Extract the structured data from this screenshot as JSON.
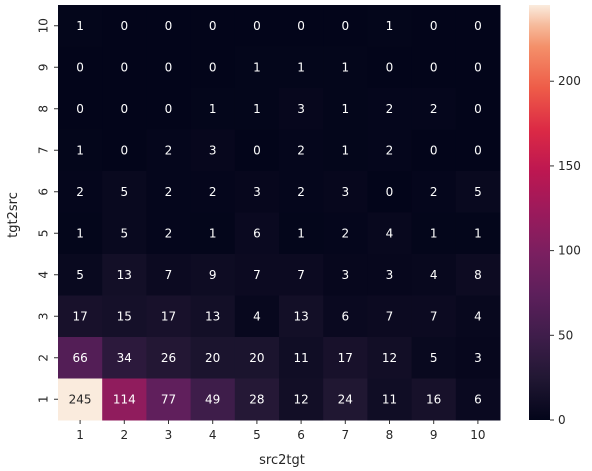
{
  "chart_data": {
    "type": "heatmap",
    "title": "",
    "xlabel": "src2tgt",
    "ylabel": "tgt2src",
    "x_categories": [
      "1",
      "2",
      "3",
      "4",
      "5",
      "6",
      "7",
      "8",
      "9",
      "10"
    ],
    "y_categories_top_to_bottom": [
      "10",
      "9",
      "8",
      "7",
      "6",
      "5",
      "4",
      "3",
      "2",
      "1"
    ],
    "values_top_to_bottom": [
      [
        1,
        0,
        0,
        0,
        0,
        0,
        0,
        1,
        0,
        0
      ],
      [
        0,
        0,
        0,
        0,
        1,
        1,
        1,
        0,
        0,
        0
      ],
      [
        0,
        0,
        0,
        1,
        1,
        3,
        1,
        2,
        2,
        0
      ],
      [
        1,
        0,
        2,
        3,
        0,
        2,
        1,
        2,
        0,
        0
      ],
      [
        2,
        5,
        2,
        2,
        3,
        2,
        3,
        0,
        2,
        5
      ],
      [
        1,
        5,
        2,
        1,
        6,
        1,
        2,
        4,
        1,
        1
      ],
      [
        5,
        13,
        7,
        9,
        7,
        7,
        3,
        3,
        4,
        8
      ],
      [
        17,
        15,
        17,
        13,
        4,
        13,
        6,
        7,
        7,
        4
      ],
      [
        66,
        34,
        26,
        20,
        20,
        11,
        17,
        12,
        5,
        3
      ],
      [
        245,
        114,
        77,
        49,
        28,
        12,
        24,
        11,
        16,
        6
      ]
    ],
    "colorbar": {
      "range": [
        0,
        245
      ],
      "ticks": [
        0,
        50,
        100,
        150,
        200
      ],
      "colormap": "rocket"
    }
  }
}
